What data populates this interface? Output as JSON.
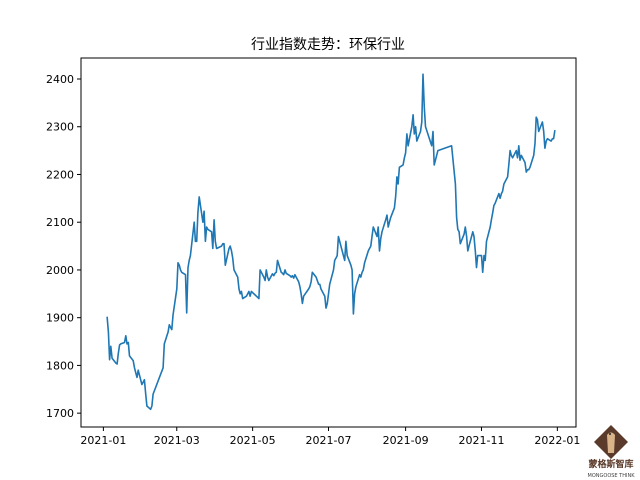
{
  "chart_data": {
    "type": "line",
    "title": "行业指数走势：环保行业",
    "xlabel": "",
    "ylabel": "",
    "xlim": [
      "2020-12-14",
      "2022-01-16"
    ],
    "ylim": [
      1671,
      2444
    ],
    "grid": false,
    "line_color": "#1f77b4",
    "x_ticks": [
      "2021-01",
      "2021-03",
      "2021-05",
      "2021-07",
      "2021-09",
      "2021-11",
      "2022-01"
    ],
    "y_ticks": [
      1700,
      1800,
      1900,
      2000,
      2100,
      2200,
      2300,
      2400
    ],
    "series": [
      {
        "points": [
          [
            "2021-01-04",
            1902
          ],
          [
            "2021-01-05",
            1870
          ],
          [
            "2021-01-06",
            1812
          ],
          [
            "2021-01-07",
            1840
          ],
          [
            "2021-01-08",
            1815
          ],
          [
            "2021-01-11",
            1805
          ],
          [
            "2021-01-12",
            1803
          ],
          [
            "2021-01-13",
            1825
          ],
          [
            "2021-01-14",
            1843
          ],
          [
            "2021-01-15",
            1845
          ],
          [
            "2021-01-18",
            1848
          ],
          [
            "2021-01-19",
            1862
          ],
          [
            "2021-01-20",
            1845
          ],
          [
            "2021-01-21",
            1848
          ],
          [
            "2021-01-22",
            1820
          ],
          [
            "2021-01-25",
            1810
          ],
          [
            "2021-01-26",
            1795
          ],
          [
            "2021-01-27",
            1785
          ],
          [
            "2021-01-28",
            1775
          ],
          [
            "2021-01-29",
            1790
          ],
          [
            "2021-02-01",
            1760
          ],
          [
            "2021-02-02",
            1765
          ],
          [
            "2021-02-03",
            1770
          ],
          [
            "2021-02-04",
            1740
          ],
          [
            "2021-02-05",
            1715
          ],
          [
            "2021-02-08",
            1708
          ],
          [
            "2021-02-09",
            1715
          ],
          [
            "2021-02-10",
            1740
          ],
          [
            "2021-02-18",
            1795
          ],
          [
            "2021-02-19",
            1845
          ],
          [
            "2021-02-22",
            1870
          ],
          [
            "2021-02-23",
            1885
          ],
          [
            "2021-02-24",
            1880
          ],
          [
            "2021-02-25",
            1875
          ],
          [
            "2021-02-26",
            1905
          ],
          [
            "2021-03-01",
            1960
          ],
          [
            "2021-03-02",
            2015
          ],
          [
            "2021-03-03",
            2010
          ],
          [
            "2021-03-04",
            2000
          ],
          [
            "2021-03-05",
            1995
          ],
          [
            "2021-03-08",
            1990
          ],
          [
            "2021-03-09",
            1910
          ],
          [
            "2021-03-10",
            2005
          ],
          [
            "2021-03-11",
            2020
          ],
          [
            "2021-03-12",
            2030
          ],
          [
            "2021-03-15",
            2100
          ],
          [
            "2021-03-16",
            2060
          ],
          [
            "2021-03-17",
            2060
          ],
          [
            "2021-03-18",
            2120
          ],
          [
            "2021-03-19",
            2153
          ],
          [
            "2021-03-22",
            2100
          ],
          [
            "2021-03-23",
            2123
          ],
          [
            "2021-03-24",
            2060
          ],
          [
            "2021-03-25",
            2090
          ],
          [
            "2021-03-26",
            2085
          ],
          [
            "2021-03-29",
            2080
          ],
          [
            "2021-03-30",
            2045
          ],
          [
            "2021-03-31",
            2105
          ],
          [
            "2021-04-01",
            2060
          ],
          [
            "2021-04-02",
            2045
          ],
          [
            "2021-04-06",
            2050
          ],
          [
            "2021-04-07",
            2055
          ],
          [
            "2021-04-08",
            2055
          ],
          [
            "2021-04-09",
            2010
          ],
          [
            "2021-04-12",
            2045
          ],
          [
            "2021-04-13",
            2050
          ],
          [
            "2021-04-14",
            2040
          ],
          [
            "2021-04-15",
            2025
          ],
          [
            "2021-04-16",
            2000
          ],
          [
            "2021-04-19",
            1985
          ],
          [
            "2021-04-20",
            1960
          ],
          [
            "2021-04-21",
            1950
          ],
          [
            "2021-04-22",
            1955
          ],
          [
            "2021-04-23",
            1940
          ],
          [
            "2021-04-26",
            1945
          ],
          [
            "2021-04-27",
            1950
          ],
          [
            "2021-04-28",
            1955
          ],
          [
            "2021-04-29",
            1945
          ],
          [
            "2021-04-30",
            1955
          ],
          [
            "2021-05-06",
            1940
          ],
          [
            "2021-05-07",
            2000
          ],
          [
            "2021-05-10",
            1985
          ],
          [
            "2021-05-11",
            1978
          ],
          [
            "2021-05-12",
            2000
          ],
          [
            "2021-05-13",
            1985
          ],
          [
            "2021-05-14",
            1978
          ],
          [
            "2021-05-17",
            1992
          ],
          [
            "2021-05-18",
            1988
          ],
          [
            "2021-05-19",
            1993
          ],
          [
            "2021-05-20",
            1995
          ],
          [
            "2021-05-21",
            2020
          ],
          [
            "2021-05-24",
            1995
          ],
          [
            "2021-05-25",
            1993
          ],
          [
            "2021-05-26",
            1990
          ],
          [
            "2021-05-27",
            2000
          ],
          [
            "2021-05-28",
            1993
          ],
          [
            "2021-05-31",
            1988
          ],
          [
            "2021-06-01",
            1985
          ],
          [
            "2021-06-02",
            1988
          ],
          [
            "2021-06-03",
            1983
          ],
          [
            "2021-06-04",
            1990
          ],
          [
            "2021-06-07",
            1975
          ],
          [
            "2021-06-08",
            1965
          ],
          [
            "2021-06-09",
            1950
          ],
          [
            "2021-06-10",
            1930
          ],
          [
            "2021-06-11",
            1945
          ],
          [
            "2021-06-15",
            1960
          ],
          [
            "2021-06-16",
            1965
          ],
          [
            "2021-06-17",
            1975
          ],
          [
            "2021-06-18",
            1995
          ],
          [
            "2021-06-21",
            1985
          ],
          [
            "2021-06-22",
            1978
          ],
          [
            "2021-06-23",
            1970
          ],
          [
            "2021-06-24",
            1970
          ],
          [
            "2021-06-25",
            1960
          ],
          [
            "2021-06-28",
            1945
          ],
          [
            "2021-06-29",
            1920
          ],
          [
            "2021-06-30",
            1930
          ],
          [
            "2021-07-01",
            1950
          ],
          [
            "2021-07-02",
            1970
          ],
          [
            "2021-07-05",
            2000
          ],
          [
            "2021-07-06",
            2020
          ],
          [
            "2021-07-07",
            2025
          ],
          [
            "2021-07-08",
            2030
          ],
          [
            "2021-07-09",
            2070
          ],
          [
            "2021-07-12",
            2040
          ],
          [
            "2021-07-13",
            2030
          ],
          [
            "2021-07-14",
            2020
          ],
          [
            "2021-07-15",
            2060
          ],
          [
            "2021-07-16",
            2030
          ],
          [
            "2021-07-19",
            2010
          ],
          [
            "2021-07-20",
            2000
          ],
          [
            "2021-07-21",
            1908
          ],
          [
            "2021-07-22",
            1950
          ],
          [
            "2021-07-23",
            1965
          ],
          [
            "2021-07-26",
            1990
          ],
          [
            "2021-07-27",
            1985
          ],
          [
            "2021-07-28",
            1995
          ],
          [
            "2021-07-29",
            2000
          ],
          [
            "2021-07-30",
            2015
          ],
          [
            "2021-08-02",
            2040
          ],
          [
            "2021-08-03",
            2045
          ],
          [
            "2021-08-04",
            2050
          ],
          [
            "2021-08-05",
            2070
          ],
          [
            "2021-08-06",
            2090
          ],
          [
            "2021-08-09",
            2070
          ],
          [
            "2021-08-10",
            2090
          ],
          [
            "2021-08-11",
            2040
          ],
          [
            "2021-08-12",
            2065
          ],
          [
            "2021-08-13",
            2080
          ],
          [
            "2021-08-16",
            2105
          ],
          [
            "2021-08-17",
            2115
          ],
          [
            "2021-08-18",
            2090
          ],
          [
            "2021-08-19",
            2100
          ],
          [
            "2021-08-20",
            2110
          ],
          [
            "2021-08-23",
            2130
          ],
          [
            "2021-08-24",
            2155
          ],
          [
            "2021-08-25",
            2195
          ],
          [
            "2021-08-26",
            2180
          ],
          [
            "2021-08-27",
            2215
          ],
          [
            "2021-08-30",
            2220
          ],
          [
            "2021-08-31",
            2235
          ],
          [
            "2021-09-01",
            2245
          ],
          [
            "2021-09-02",
            2285
          ],
          [
            "2021-09-03",
            2260
          ],
          [
            "2021-09-06",
            2300
          ],
          [
            "2021-09-07",
            2325
          ],
          [
            "2021-09-08",
            2285
          ],
          [
            "2021-09-09",
            2300
          ],
          [
            "2021-09-10",
            2270
          ],
          [
            "2021-09-13",
            2290
          ],
          [
            "2021-09-14",
            2310
          ],
          [
            "2021-09-15",
            2410
          ],
          [
            "2021-09-16",
            2340
          ],
          [
            "2021-09-17",
            2300
          ],
          [
            "2021-09-22",
            2260
          ],
          [
            "2021-09-23",
            2290
          ],
          [
            "2021-09-24",
            2220
          ],
          [
            "2021-09-27",
            2250
          ],
          [
            "2021-10-08",
            2260
          ],
          [
            "2021-10-11",
            2180
          ],
          [
            "2021-10-12",
            2110
          ],
          [
            "2021-10-13",
            2085
          ],
          [
            "2021-10-14",
            2080
          ],
          [
            "2021-10-15",
            2055
          ],
          [
            "2021-10-18",
            2075
          ],
          [
            "2021-10-19",
            2090
          ],
          [
            "2021-10-20",
            2070
          ],
          [
            "2021-10-21",
            2040
          ],
          [
            "2021-10-22",
            2050
          ],
          [
            "2021-10-25",
            2080
          ],
          [
            "2021-10-26",
            2070
          ],
          [
            "2021-10-27",
            2040
          ],
          [
            "2021-10-28",
            2005
          ],
          [
            "2021-10-29",
            2030
          ],
          [
            "2021-11-01",
            2030
          ],
          [
            "2021-11-02",
            1995
          ],
          [
            "2021-11-03",
            2030
          ],
          [
            "2021-11-04",
            2020
          ],
          [
            "2021-11-05",
            2060
          ],
          [
            "2021-11-08",
            2090
          ],
          [
            "2021-11-09",
            2105
          ],
          [
            "2021-11-10",
            2120
          ],
          [
            "2021-11-11",
            2135
          ],
          [
            "2021-11-12",
            2140
          ],
          [
            "2021-11-15",
            2160
          ],
          [
            "2021-11-16",
            2150
          ],
          [
            "2021-11-17",
            2160
          ],
          [
            "2021-11-18",
            2165
          ],
          [
            "2021-11-19",
            2180
          ],
          [
            "2021-11-22",
            2195
          ],
          [
            "2021-11-23",
            2220
          ],
          [
            "2021-11-24",
            2250
          ],
          [
            "2021-11-25",
            2240
          ],
          [
            "2021-11-26",
            2235
          ],
          [
            "2021-11-29",
            2250
          ],
          [
            "2021-11-30",
            2235
          ],
          [
            "2021-12-01",
            2260
          ],
          [
            "2021-12-02",
            2230
          ],
          [
            "2021-12-03",
            2240
          ],
          [
            "2021-12-06",
            2225
          ],
          [
            "2021-12-07",
            2205
          ],
          [
            "2021-12-08",
            2210
          ],
          [
            "2021-12-09",
            2210
          ],
          [
            "2021-12-10",
            2215
          ],
          [
            "2021-12-13",
            2240
          ],
          [
            "2021-12-14",
            2265
          ],
          [
            "2021-12-15",
            2320
          ],
          [
            "2021-12-16",
            2315
          ],
          [
            "2021-12-17",
            2290
          ],
          [
            "2021-12-20",
            2310
          ],
          [
            "2021-12-21",
            2290
          ],
          [
            "2021-12-22",
            2255
          ],
          [
            "2021-12-23",
            2270
          ],
          [
            "2021-12-24",
            2275
          ],
          [
            "2021-12-27",
            2270
          ],
          [
            "2021-12-28",
            2275
          ],
          [
            "2021-12-29",
            2275
          ],
          [
            "2021-12-30",
            2293
          ]
        ]
      }
    ]
  },
  "logo": {
    "text_cn": "蒙格斯智库",
    "text_en": "MONGOOSE THINK"
  }
}
